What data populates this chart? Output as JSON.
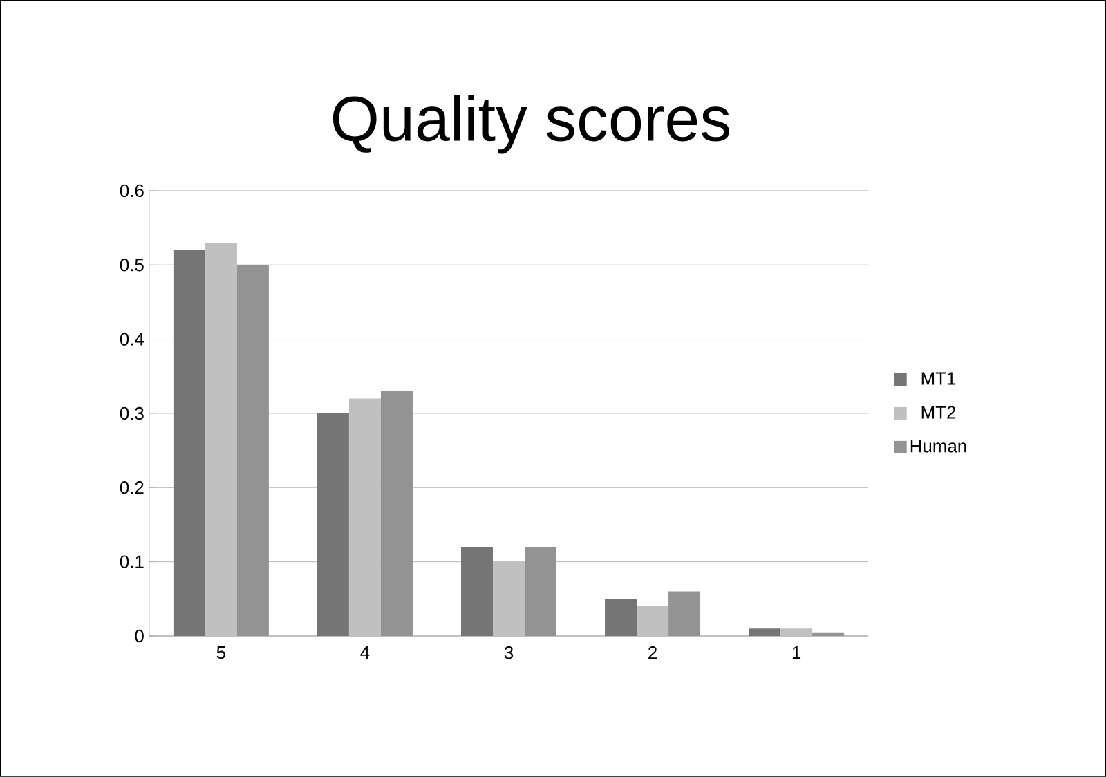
{
  "chart_data": {
    "type": "bar",
    "title": "Quality scores",
    "categories": [
      "5",
      "4",
      "3",
      "2",
      "1"
    ],
    "series": [
      {
        "name": "MT1",
        "color": "#757575",
        "values": [
          0.52,
          0.3,
          0.12,
          0.05,
          0.01
        ]
      },
      {
        "name": "MT2",
        "color": "#c0c0c0",
        "values": [
          0.53,
          0.32,
          0.1,
          0.04,
          0.01
        ]
      },
      {
        "name": "Human",
        "color": "#939393",
        "values": [
          0.5,
          0.33,
          0.12,
          0.06,
          0.005
        ]
      }
    ],
    "ylim": [
      0,
      0.6
    ],
    "yticks": [
      0,
      0.1,
      0.2,
      0.3,
      0.4,
      0.5,
      0.6
    ],
    "grid": "y",
    "legend": "right"
  }
}
